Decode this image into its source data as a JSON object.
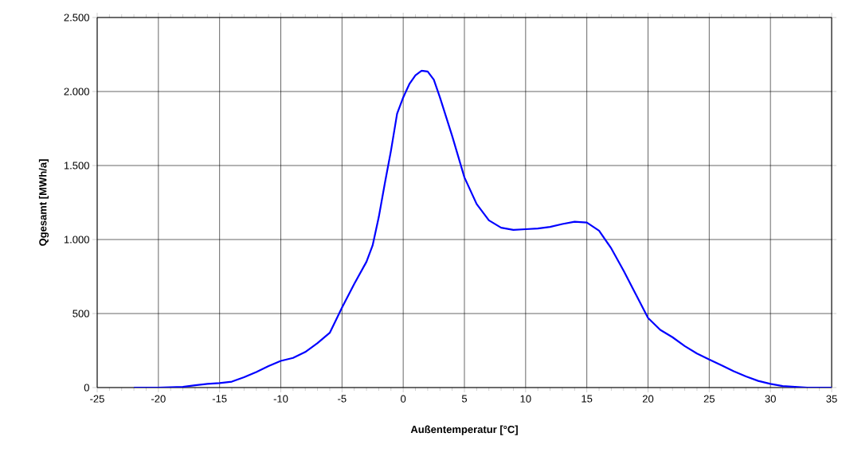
{
  "chart_data": {
    "type": "line",
    "xlabel": "Außentemperatur [°C]",
    "ylabel": "Qgesamt [MWh/a]",
    "x": [
      -22,
      -20,
      -18,
      -17,
      -16,
      -15,
      -14,
      -13,
      -12,
      -11,
      -10,
      -9,
      -8,
      -7,
      -6,
      -5,
      -4,
      -3,
      -2.5,
      -2,
      -1.5,
      -1,
      -0.5,
      0,
      0.5,
      1,
      1.5,
      2,
      2.5,
      3,
      4,
      5,
      6,
      7,
      8,
      9,
      10,
      11,
      12,
      13,
      14,
      15,
      16,
      17,
      18,
      19,
      20,
      21,
      22,
      23,
      24,
      25,
      26,
      27,
      28,
      29,
      30,
      31,
      32,
      33,
      35
    ],
    "series": [
      {
        "color": "#0000ff",
        "values": [
          0,
          0,
          5,
          15,
          25,
          30,
          40,
          70,
          105,
          145,
          180,
          200,
          240,
          300,
          370,
          540,
          700,
          850,
          960,
          1150,
          1380,
          1600,
          1850,
          1960,
          2050,
          2110,
          2140,
          2135,
          2080,
          1960,
          1700,
          1420,
          1240,
          1130,
          1080,
          1065,
          1070,
          1075,
          1085,
          1105,
          1120,
          1115,
          1060,
          940,
          790,
          630,
          470,
          390,
          340,
          280,
          230,
          190,
          150,
          110,
          75,
          45,
          25,
          10,
          5,
          0,
          0
        ]
      }
    ],
    "xlim": [
      -25,
      35
    ],
    "ylim": [
      0,
      2500
    ],
    "xticks": [
      -25,
      -20,
      -15,
      -10,
      -5,
      0,
      5,
      10,
      15,
      20,
      25,
      30,
      35
    ],
    "yticks": [
      0,
      500,
      {
        "value": 1000,
        "label": "1.000"
      },
      {
        "value": 1500,
        "label": "1.500"
      },
      {
        "value": 2000,
        "label": "2.000"
      },
      {
        "value": 2500,
        "label": "2.500"
      }
    ],
    "grid": true,
    "marker": "none",
    "line_style": "solid"
  }
}
